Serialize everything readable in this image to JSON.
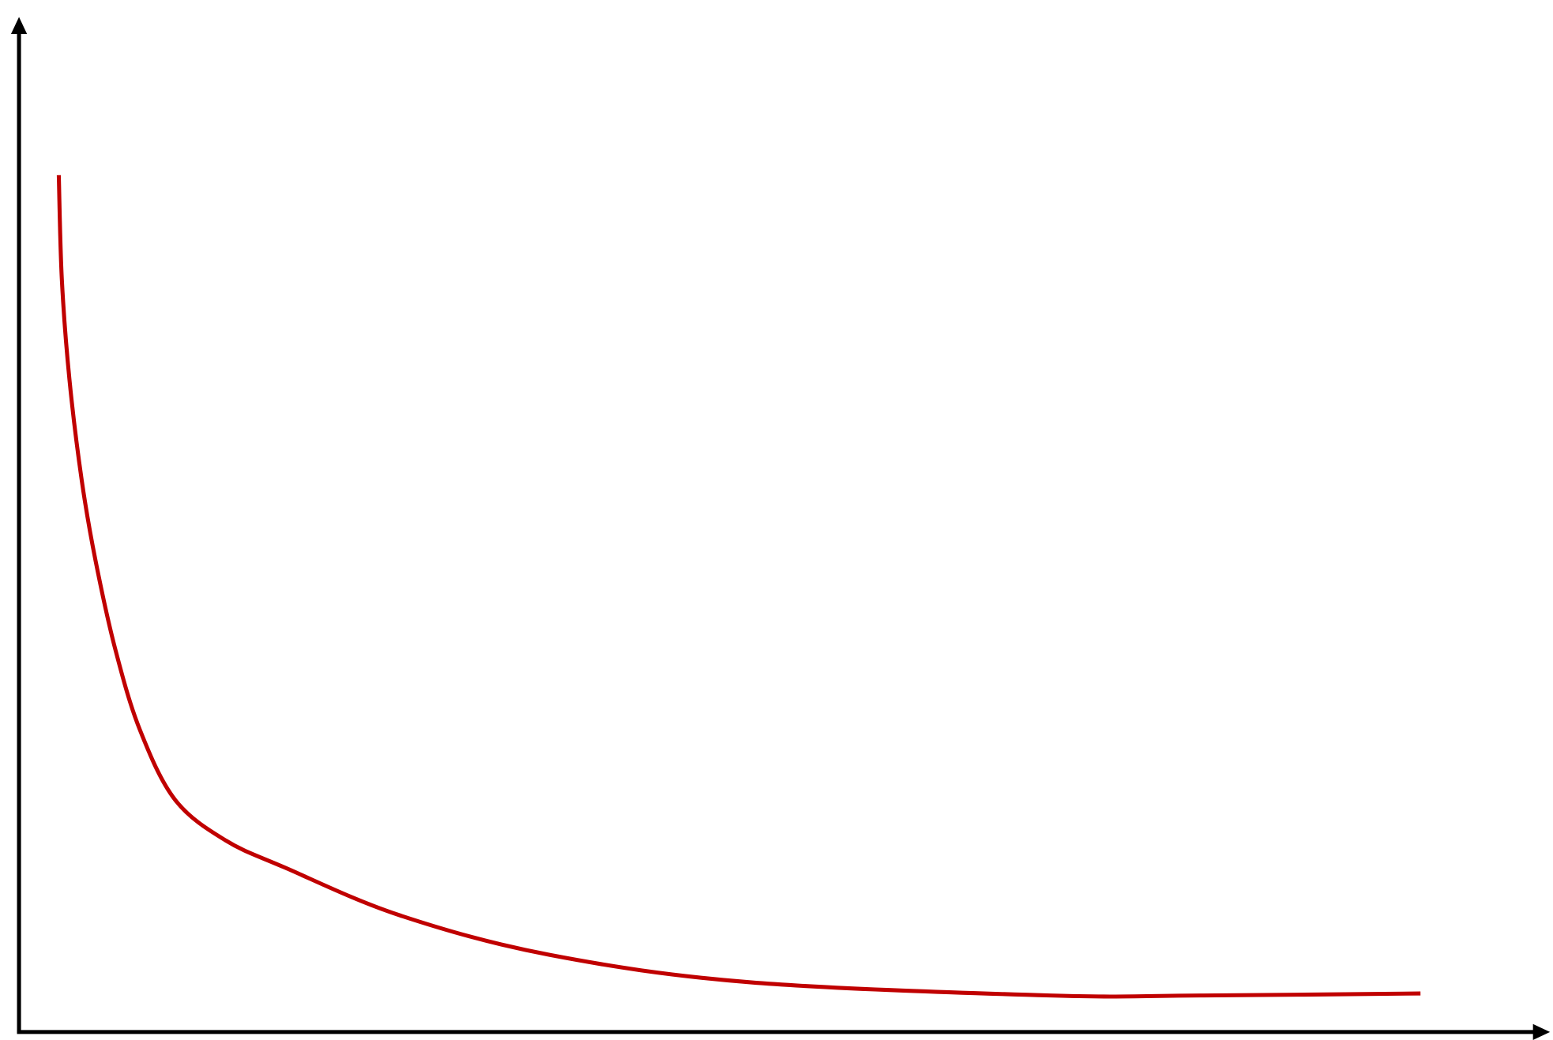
{
  "chart_data": {
    "type": "line",
    "title": "",
    "xlabel": "",
    "ylabel": "",
    "xlim": [
      0,
      100
    ],
    "ylim": [
      0,
      100
    ],
    "grid": false,
    "axes_with_arrows": true,
    "tick_labels": false,
    "series": [
      {
        "color": "#c00000",
        "x": [
          2.6,
          2.8,
          3.3,
          4.1,
          5.0,
          6.3,
          7.9,
          10.2,
          13.5,
          17.4,
          24.9,
          34.7,
          47.8,
          67.4,
          77.2,
          91.6
        ],
        "y": [
          84.5,
          74.2,
          64.3,
          54.4,
          46.5,
          37.7,
          29.8,
          22.9,
          18.9,
          16.2,
          11.5,
          7.6,
          4.9,
          3.6,
          3.6,
          3.8
        ]
      }
    ],
    "axis_color": "#000000"
  }
}
